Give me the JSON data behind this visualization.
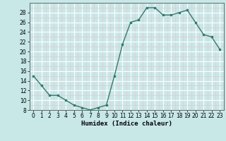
{
  "x": [
    0,
    1,
    2,
    3,
    4,
    5,
    6,
    7,
    8,
    9,
    10,
    11,
    12,
    13,
    14,
    15,
    16,
    17,
    18,
    19,
    20,
    21,
    22,
    23
  ],
  "y": [
    15,
    13,
    11,
    11,
    10,
    9,
    8.5,
    8,
    8.5,
    9,
    15,
    21.5,
    26,
    26.5,
    29,
    29,
    27.5,
    27.5,
    28,
    28.5,
    26,
    23.5,
    23,
    20.5
  ],
  "line_color": "#2e7d6e",
  "marker_color": "#2e7d6e",
  "bg_color": "#c8e8e8",
  "grid_color_major": "#ffffff",
  "grid_color_minor": "#e8c8c8",
  "xlabel": "Humidex (Indice chaleur)",
  "xlabel_fontsize": 6.5,
  "tick_fontsize": 5.5,
  "ylim": [
    8,
    30
  ],
  "xlim": [
    -0.5,
    23.5
  ],
  "yticks": [
    8,
    10,
    12,
    14,
    16,
    18,
    20,
    22,
    24,
    26,
    28
  ],
  "xticks": [
    0,
    1,
    2,
    3,
    4,
    5,
    6,
    7,
    8,
    9,
    10,
    11,
    12,
    13,
    14,
    15,
    16,
    17,
    18,
    19,
    20,
    21,
    22,
    23
  ]
}
